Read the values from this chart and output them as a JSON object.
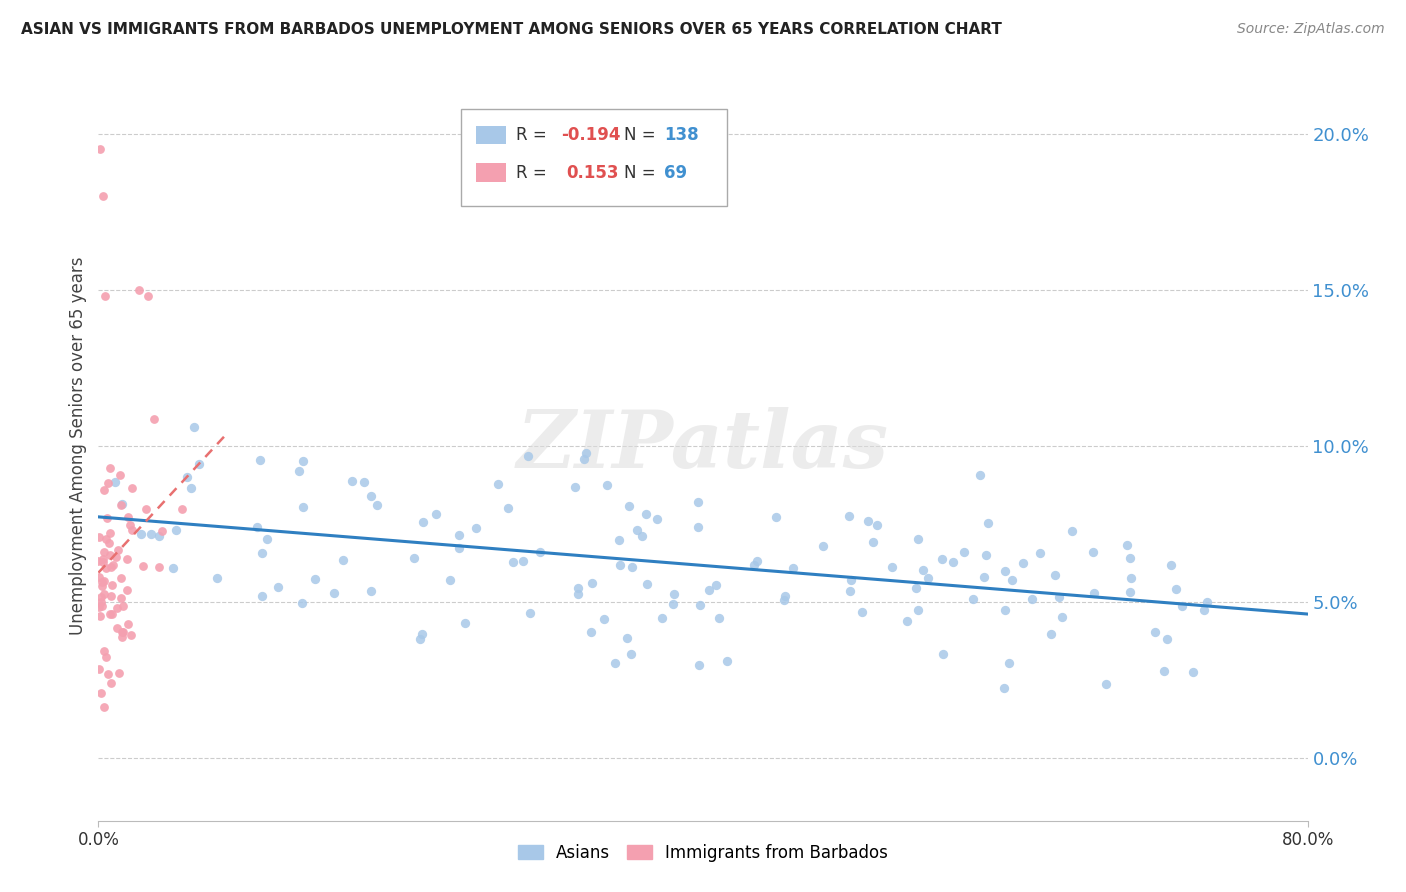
{
  "title": "ASIAN VS IMMIGRANTS FROM BARBADOS UNEMPLOYMENT AMONG SENIORS OVER 65 YEARS CORRELATION CHART",
  "source": "Source: ZipAtlas.com",
  "ylabel": "Unemployment Among Seniors over 65 years",
  "xlim": [
    0.0,
    0.8
  ],
  "ylim": [
    -0.02,
    0.22
  ],
  "yticks": [
    0.0,
    0.05,
    0.1,
    0.15,
    0.2
  ],
  "ytick_labels": [
    "0.0%",
    "5.0%",
    "10.0%",
    "15.0%",
    "20.0%"
  ],
  "asian_color": "#a8c8e8",
  "barbados_color": "#f4a0b0",
  "asian_trend_color": "#2f7fc1",
  "barbados_trend_color": "#e87070",
  "watermark": "ZIPatlas",
  "R_asian": -0.194,
  "N_asian": 138,
  "R_barbados": 0.153,
  "N_barbados": 69,
  "legend_R_color": "#e05050",
  "legend_N_color": "#4090d0"
}
